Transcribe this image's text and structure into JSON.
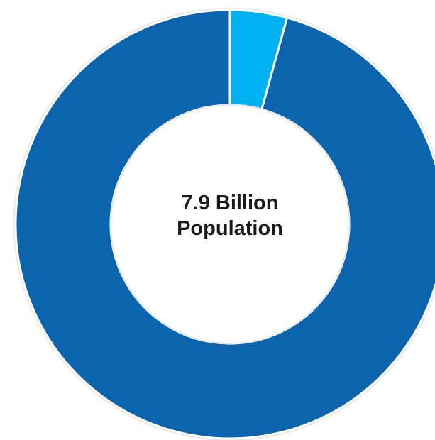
{
  "chart_data": {
    "type": "pie",
    "title": "",
    "center_label": {
      "line1": "7.9 Billion",
      "line2": "Population"
    },
    "slices": [
      {
        "value": 4.3,
        "color": "#00B0F0"
      },
      {
        "value": 95.7,
        "color": "#0B64AC"
      }
    ],
    "donut": true,
    "start_at": "top",
    "separator_color": "#ffffff"
  }
}
